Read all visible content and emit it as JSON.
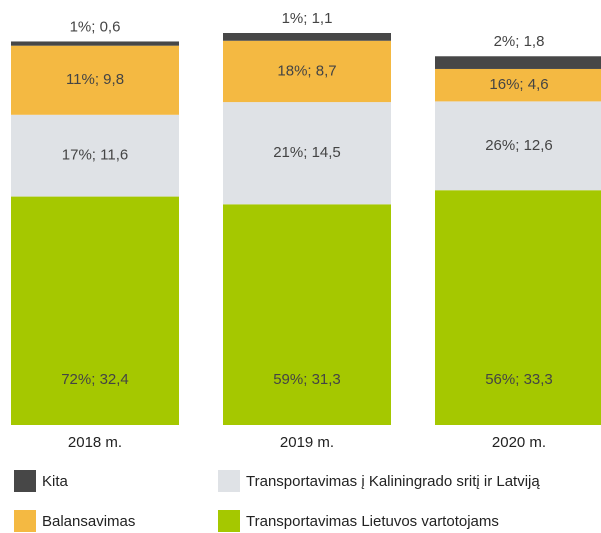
{
  "chart_data": {
    "type": "stacked_bar",
    "categories": [
      "2018 m.",
      "2019 m.",
      "2020 m."
    ],
    "series": [
      {
        "name": "Kita",
        "color": "#474747",
        "values": [
          0.6,
          1.1,
          1.8
        ],
        "value_labels": [
          "1%; 0,6",
          "1%; 1,1",
          "2%; 1,8"
        ]
      },
      {
        "name": "Transportavimas į Kaliningrado sritį ir Latviją",
        "color": "#dfe2e6",
        "values": [
          11.6,
          14.5,
          12.6
        ],
        "value_labels": [
          "17%; 11,6",
          "21%; 14,5",
          "26%; 12,6"
        ]
      },
      {
        "name": "Balansavimas",
        "color": "#f4b942",
        "values": [
          9.8,
          8.7,
          4.6
        ],
        "value_labels": [
          "11%; 9,8",
          "18%; 8,7",
          "16%; 4,6"
        ]
      },
      {
        "name": "Transportavimas Lietuvos vartotojams",
        "color": "#a5c800",
        "values": [
          32.4,
          31.3,
          33.3
        ],
        "value_labels": [
          "72%; 32,4",
          "59%; 31,3",
          "56%; 33,3"
        ]
      }
    ],
    "stack_order": [
      3,
      1,
      2,
      0
    ]
  }
}
